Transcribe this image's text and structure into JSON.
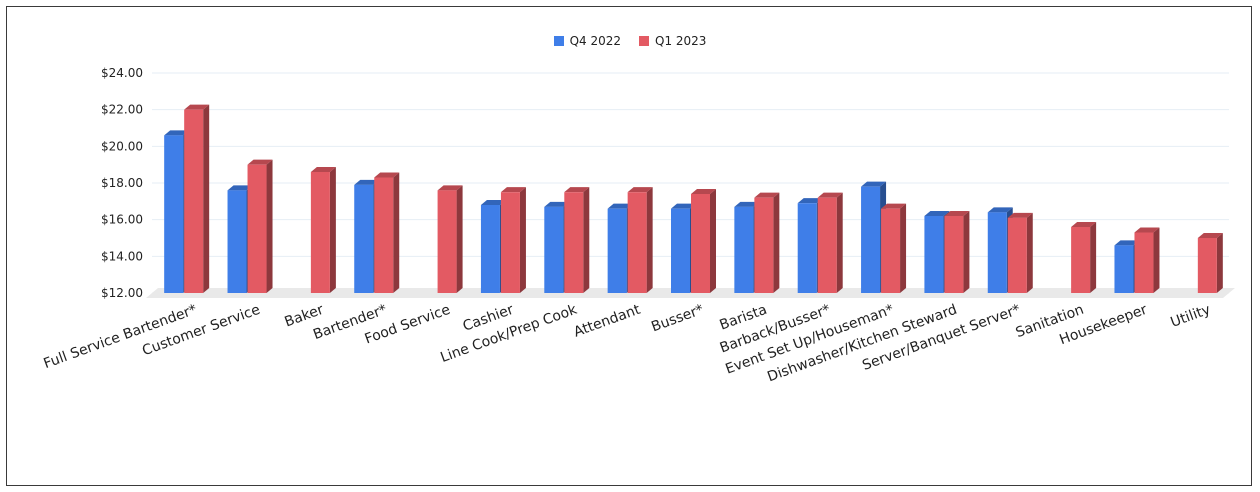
{
  "chart_data": {
    "type": "bar",
    "title": "",
    "xlabel": "",
    "ylabel": "",
    "ylim": [
      12,
      24
    ],
    "y_ticks": [
      "$12.00",
      "$14.00",
      "$16.00",
      "$18.00",
      "$20.00",
      "$22.00",
      "$24.00"
    ],
    "y_tick_values": [
      12,
      14,
      16,
      18,
      20,
      22,
      24
    ],
    "legend_position": "top-center",
    "grid": true,
    "categories": [
      "Full Service Bartender*",
      "Customer Service",
      "Baker",
      "Bartender*",
      "Food Service",
      "Cashier",
      "Line Cook/Prep Cook",
      "Attendant",
      "Busser*",
      "Barista",
      "Barback/Busser*",
      "Event Set Up/Houseman*",
      "Dishwasher/Kitchen Steward",
      "Server/Banquet Server*",
      "Sanitation",
      "Housekeeper",
      "Utility"
    ],
    "series": [
      {
        "name": "Q4 2022",
        "color": "#3f7ee8",
        "values": [
          20.6,
          17.6,
          null,
          17.9,
          null,
          16.8,
          16.7,
          16.6,
          16.6,
          16.7,
          16.9,
          17.8,
          16.2,
          16.4,
          null,
          14.6,
          null
        ]
      },
      {
        "name": "Q1 2023",
        "color": "#e35a63",
        "values": [
          22.0,
          19.0,
          18.6,
          18.3,
          17.6,
          17.5,
          17.5,
          17.5,
          17.4,
          17.2,
          17.2,
          16.6,
          16.2,
          16.1,
          15.6,
          15.3,
          15.0
        ]
      }
    ]
  }
}
